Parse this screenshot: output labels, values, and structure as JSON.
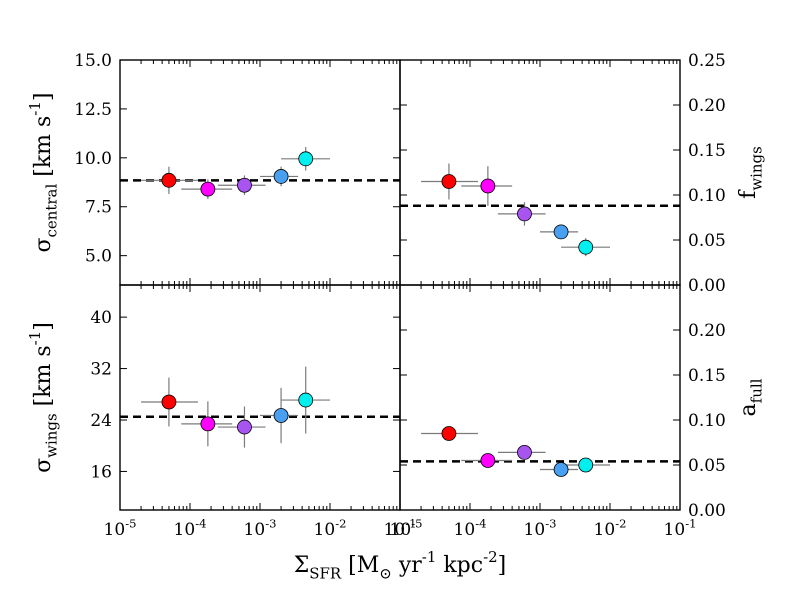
{
  "chart_data": {
    "type": "scatter",
    "x_scale": "log",
    "x_range": [
      1e-05,
      0.1
    ],
    "xlabel": "Σ_SFR [M_⊙ yr^-1 kpc^-2]",
    "x_tick_labels": [
      "10^-5",
      "10^-4",
      "10^-3",
      "10^-2",
      "10^-1"
    ],
    "x_tick_labels_right_panels": [
      "10^-5",
      "10^-4",
      "10^-3",
      "10^-2",
      "10^-1"
    ],
    "marker_colors": [
      "#ff0000",
      "#ff00ff",
      "#a855f0",
      "#4aa0f0",
      "#00f0f0"
    ],
    "bins": [
      {
        "x": 5e-05,
        "x_low": 2e-05,
        "x_high": 0.00013
      },
      {
        "x": 0.00018,
        "x_low": 7.5e-05,
        "x_high": 0.0004
      },
      {
        "x": 0.0006,
        "x_low": 0.00025,
        "x_high": 0.0012
      },
      {
        "x": 0.002,
        "x_low": 0.001,
        "x_high": 0.0035
      },
      {
        "x": 0.0045,
        "x_low": 0.002,
        "x_high": 0.01
      }
    ],
    "panels": [
      {
        "id": "sigma-central",
        "position": "top-left",
        "ylabel": "σ_central [km s^-1]",
        "ylabel_side": "left",
        "ylim": [
          3.5,
          15.0
        ],
        "yticks": [
          5.0,
          7.5,
          10.0,
          12.5,
          15.0
        ],
        "ytick_labels": [
          "5.0",
          "7.5",
          "10.0",
          "12.5",
          "15.0"
        ],
        "reference_line": 8.85,
        "values": [
          8.85,
          8.4,
          8.6,
          9.05,
          9.95
        ],
        "y_err": [
          0.7,
          0.5,
          0.5,
          0.5,
          0.6
        ]
      },
      {
        "id": "f-wings",
        "position": "top-right",
        "ylabel": "f_wings",
        "ylabel_side": "right",
        "ylim": [
          0.0,
          0.25
        ],
        "yticks": [
          0.0,
          0.05,
          0.1,
          0.15,
          0.2,
          0.25
        ],
        "ytick_labels": [
          "0.00",
          "0.05",
          "0.10",
          "0.15",
          "0.20",
          "0.25"
        ],
        "reference_line": 0.088,
        "values": [
          0.115,
          0.11,
          0.079,
          0.059,
          0.042
        ],
        "y_err": [
          0.02,
          0.022,
          0.013,
          0.004,
          0.01
        ]
      },
      {
        "id": "sigma-wings",
        "position": "bottom-left",
        "ylabel": "σ_wings [km s^-1]",
        "ylabel_side": "left",
        "ylim": [
          10.0,
          45.0
        ],
        "yticks": [
          16,
          24,
          32,
          40
        ],
        "ytick_labels": [
          "16",
          "24",
          "32",
          "40"
        ],
        "reference_line": 24.5,
        "values": [
          26.8,
          23.4,
          22.9,
          24.7,
          27.1
        ],
        "y_err": [
          3.8,
          3.5,
          3.2,
          4.3,
          5.2
        ]
      },
      {
        "id": "a-full",
        "position": "bottom-right",
        "ylabel": "a_full",
        "ylabel_side": "right",
        "ylim": [
          0.0,
          0.25
        ],
        "yticks": [
          0.0,
          0.05,
          0.1,
          0.15,
          0.2
        ],
        "ytick_labels": [
          "0.00",
          "0.05",
          "0.10",
          "0.15",
          "0.20"
        ],
        "reference_line": 0.054,
        "values": [
          0.085,
          0.055,
          0.064,
          0.045,
          0.05
        ],
        "y_err": [
          0.0,
          0.0,
          0.0,
          0.0,
          0.0
        ]
      }
    ]
  }
}
